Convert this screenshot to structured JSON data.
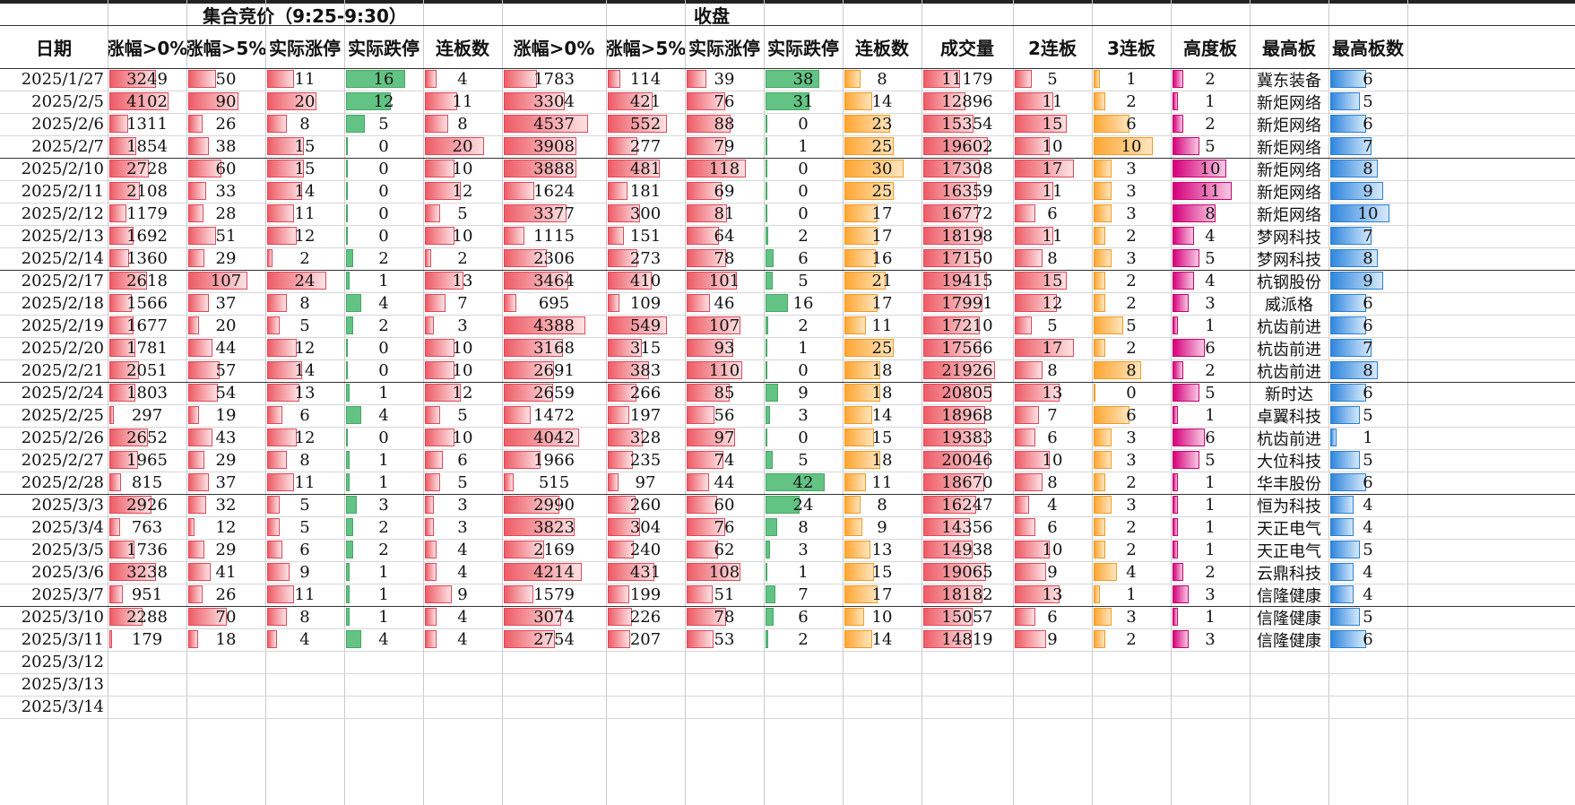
{
  "groups": {
    "auction": "集合竞价（9:25-9:30）",
    "close": "收盘"
  },
  "headers": [
    "日期",
    "涨幅>0%",
    "涨幅>5%",
    "实际涨停",
    "实际跌停",
    "连板数",
    "涨幅>0%",
    "涨幅>5%",
    "实际涨停",
    "实际跌停",
    "连板数",
    "成交量",
    "2连板",
    "3连板",
    "高度板",
    "最高板",
    "最高板数"
  ],
  "colors": {
    "red": "#ee5c66",
    "green": "#63c384",
    "orange": "#ffa632",
    "pink": "#d6007b",
    "blue": "#2e86de"
  },
  "rows": [
    {
      "date": "2025/1/27",
      "v": [
        3249,
        50,
        11,
        16,
        4,
        1783,
        114,
        39,
        38,
        8,
        11179,
        5,
        1,
        2,
        "冀东装备",
        6
      ]
    },
    {
      "date": "2025/2/5",
      "v": [
        4102,
        90,
        20,
        12,
        11,
        3304,
        421,
        76,
        31,
        14,
        12896,
        11,
        2,
        1,
        "新炬网络",
        5
      ]
    },
    {
      "date": "2025/2/6",
      "v": [
        1311,
        26,
        8,
        5,
        8,
        4537,
        552,
        88,
        0,
        23,
        15354,
        15,
        6,
        2,
        "新炬网络",
        6
      ]
    },
    {
      "date": "2025/2/7",
      "v": [
        1854,
        38,
        15,
        0,
        20,
        3908,
        277,
        79,
        1,
        25,
        19602,
        10,
        10,
        5,
        "新炬网络",
        7
      ]
    },
    {
      "date": "2025/2/10",
      "v": [
        2728,
        60,
        15,
        0,
        10,
        3888,
        481,
        118,
        0,
        30,
        17308,
        17,
        3,
        10,
        "新炬网络",
        8
      ]
    },
    {
      "date": "2025/2/11",
      "v": [
        2108,
        33,
        14,
        0,
        12,
        1624,
        181,
        69,
        0,
        25,
        16359,
        11,
        3,
        11,
        "新炬网络",
        9
      ]
    },
    {
      "date": "2025/2/12",
      "v": [
        1179,
        28,
        11,
        0,
        5,
        3377,
        300,
        81,
        0,
        17,
        16772,
        6,
        3,
        8,
        "新炬网络",
        10
      ]
    },
    {
      "date": "2025/2/13",
      "v": [
        1692,
        51,
        12,
        0,
        10,
        1115,
        151,
        64,
        2,
        17,
        18198,
        11,
        2,
        4,
        "梦网科技",
        7
      ]
    },
    {
      "date": "2025/2/14",
      "v": [
        1360,
        29,
        2,
        2,
        2,
        2306,
        273,
        78,
        6,
        16,
        17150,
        8,
        3,
        5,
        "梦网科技",
        8
      ]
    },
    {
      "date": "2025/2/17",
      "v": [
        2618,
        107,
        24,
        1,
        13,
        3464,
        410,
        101,
        5,
        21,
        19415,
        15,
        2,
        4,
        "杭钢股份",
        9
      ]
    },
    {
      "date": "2025/2/18",
      "v": [
        1566,
        37,
        8,
        4,
        7,
        695,
        109,
        46,
        16,
        17,
        17991,
        12,
        2,
        3,
        "威派格",
        6
      ]
    },
    {
      "date": "2025/2/19",
      "v": [
        1677,
        20,
        5,
        2,
        3,
        4388,
        549,
        107,
        2,
        11,
        17210,
        5,
        5,
        1,
        "杭齿前进",
        6
      ]
    },
    {
      "date": "2025/2/20",
      "v": [
        1781,
        44,
        12,
        0,
        10,
        3168,
        315,
        93,
        1,
        25,
        17566,
        17,
        2,
        6,
        "杭齿前进",
        7
      ]
    },
    {
      "date": "2025/2/21",
      "v": [
        2051,
        57,
        14,
        0,
        10,
        2691,
        383,
        110,
        0,
        18,
        21926,
        8,
        8,
        2,
        "杭齿前进",
        8
      ]
    },
    {
      "date": "2025/2/24",
      "v": [
        1803,
        54,
        13,
        1,
        12,
        2659,
        266,
        85,
        9,
        18,
        20805,
        13,
        0,
        5,
        "新时达",
        6
      ]
    },
    {
      "date": "2025/2/25",
      "v": [
        297,
        19,
        6,
        4,
        5,
        1472,
        197,
        56,
        3,
        14,
        18968,
        7,
        6,
        1,
        "卓翼科技",
        5
      ]
    },
    {
      "date": "2025/2/26",
      "v": [
        2652,
        43,
        12,
        0,
        10,
        4042,
        328,
        97,
        0,
        15,
        19383,
        6,
        3,
        6,
        "杭齿前进",
        1
      ]
    },
    {
      "date": "2025/2/27",
      "v": [
        1965,
        29,
        8,
        1,
        6,
        1966,
        235,
        74,
        5,
        18,
        20046,
        10,
        3,
        5,
        "大位科技",
        5
      ]
    },
    {
      "date": "2025/2/28",
      "v": [
        815,
        37,
        11,
        1,
        5,
        515,
        97,
        44,
        42,
        11,
        18670,
        8,
        2,
        1,
        "华丰股份",
        6
      ]
    },
    {
      "date": "2025/3/3",
      "v": [
        2926,
        32,
        5,
        3,
        3,
        2990,
        260,
        60,
        24,
        8,
        16247,
        4,
        3,
        1,
        "恒为科技",
        4
      ]
    },
    {
      "date": "2025/3/4",
      "v": [
        763,
        12,
        5,
        2,
        3,
        3823,
        304,
        76,
        8,
        9,
        14356,
        6,
        2,
        1,
        "天正电气",
        4
      ]
    },
    {
      "date": "2025/3/5",
      "v": [
        1736,
        29,
        6,
        2,
        4,
        2169,
        240,
        62,
        3,
        13,
        14938,
        10,
        2,
        1,
        "天正电气",
        5
      ]
    },
    {
      "date": "2025/3/6",
      "v": [
        3238,
        41,
        9,
        1,
        4,
        4214,
        431,
        108,
        1,
        15,
        19065,
        9,
        4,
        2,
        "云鼎科技",
        4
      ]
    },
    {
      "date": "2025/3/7",
      "v": [
        951,
        26,
        11,
        1,
        9,
        1579,
        199,
        51,
        7,
        17,
        18182,
        13,
        1,
        3,
        "信隆健康",
        4
      ]
    },
    {
      "date": "2025/3/10",
      "v": [
        2288,
        70,
        8,
        1,
        4,
        3074,
        226,
        78,
        6,
        10,
        15057,
        6,
        3,
        1,
        "信隆健康",
        5
      ]
    },
    {
      "date": "2025/3/11",
      "v": [
        179,
        18,
        4,
        4,
        4,
        2754,
        207,
        53,
        2,
        14,
        14819,
        9,
        2,
        3,
        "信隆健康",
        6
      ]
    },
    {
      "date": "2025/3/12",
      "v": []
    },
    {
      "date": "2025/3/13",
      "v": []
    },
    {
      "date": "2025/3/14",
      "v": []
    }
  ]
}
